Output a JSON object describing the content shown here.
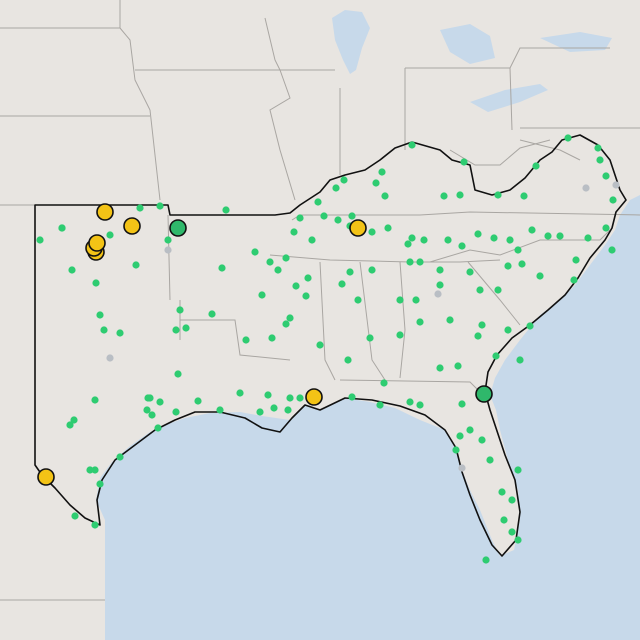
{
  "map": {
    "colors": {
      "land": "#e8e5e1",
      "land_outside": "#e2dfdb",
      "water": "#c7d9ea",
      "state_border": "#a9a6a2",
      "region_border": "#111111",
      "dot_green": "#2ecc71",
      "dot_grey": "#b9bec4",
      "marker_yellow": "#f3c316",
      "marker_green": "#2fb86b",
      "marker_stroke": "#111111"
    },
    "markers": [
      {
        "id": "marker-okc-1",
        "color": "yellow",
        "label": ""
      },
      {
        "id": "marker-okc-2",
        "color": "yellow",
        "label": ""
      },
      {
        "id": "marker-okc-3",
        "color": "yellow",
        "label": ""
      },
      {
        "id": "marker-north-ok",
        "color": "yellow",
        "label": ""
      },
      {
        "id": "marker-tulsa",
        "color": "green",
        "label": ""
      },
      {
        "id": "marker-nashville",
        "color": "yellow",
        "label": ""
      },
      {
        "id": "marker-mobile",
        "color": "yellow",
        "label": ""
      },
      {
        "id": "marker-jacksonville",
        "color": "green",
        "label": ""
      },
      {
        "id": "marker-laredo",
        "color": "yellow",
        "label": ""
      },
      {
        "id": "marker-wichita-falls",
        "color": "yellow",
        "label": ""
      }
    ]
  }
}
